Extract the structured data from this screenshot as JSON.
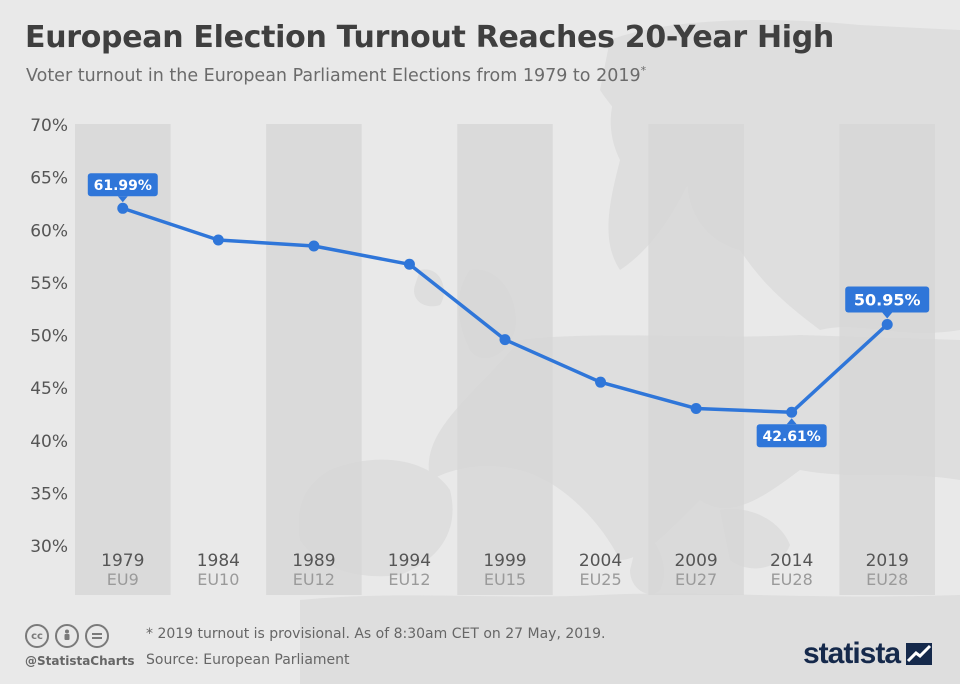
{
  "header": {
    "title": "European Election Turnout Reaches 20-Year High",
    "subtitle": "Voter turnout in the European Parliament Elections from 1979 to 2019",
    "subtitle_marker": "*"
  },
  "chart_data": {
    "type": "line",
    "title": "European Election Turnout Reaches 20-Year High",
    "xlabel": "",
    "ylabel": "",
    "ylim": [
      30,
      70
    ],
    "y_ticks": [
      30,
      35,
      40,
      45,
      50,
      55,
      60,
      65,
      70
    ],
    "y_tick_labels": [
      "30%",
      "35%",
      "40%",
      "45%",
      "50%",
      "55%",
      "60%",
      "65%",
      "70%"
    ],
    "categories": [
      "1979",
      "1984",
      "1989",
      "1994",
      "1999",
      "2004",
      "2009",
      "2014",
      "2019"
    ],
    "sublabels": [
      "EU9",
      "EU10",
      "EU12",
      "EU12",
      "EU15",
      "EU25",
      "EU27",
      "EU28",
      "EU28"
    ],
    "series": [
      {
        "name": "Voter turnout",
        "values": [
          61.99,
          58.98,
          58.41,
          56.67,
          49.51,
          45.47,
          42.97,
          42.61,
          50.95
        ]
      }
    ],
    "data_labels": [
      {
        "index": 0,
        "text": "61.99%",
        "position": "above"
      },
      {
        "index": 7,
        "text": "42.61%",
        "position": "below"
      },
      {
        "index": 8,
        "text": "50.95%",
        "position": "above"
      }
    ],
    "grid": false,
    "legend": "none"
  },
  "footer": {
    "license_icons": [
      "cc-icon",
      "person-icon",
      "equals-icon"
    ],
    "handle": "@StatistaCharts",
    "note": "* 2019 turnout is provisional. As of 8:30am CET on 27 May, 2019.",
    "source": "Source: European Parliament",
    "brand": "statista"
  },
  "colors": {
    "background": "#e9e9e9",
    "band": "#d6d6d6",
    "line": "#2f76d9",
    "label_bg": "#2f76d9",
    "title": "#3f3f3f",
    "text": "#555555",
    "sublabel": "#9a9a9a",
    "brand": "#15294b"
  }
}
